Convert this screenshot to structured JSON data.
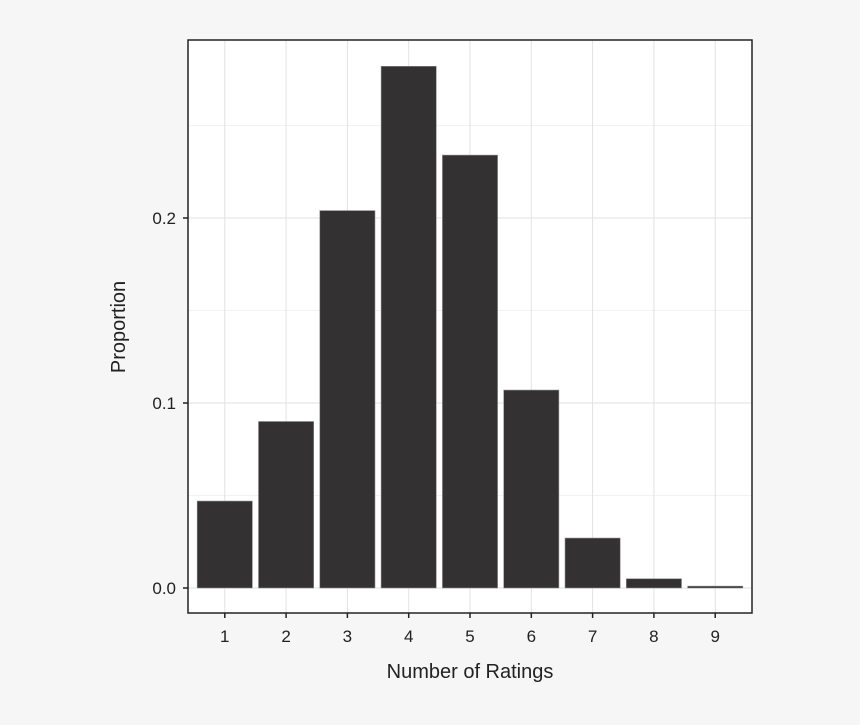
{
  "chart_data": {
    "type": "bar",
    "title": "",
    "xlabel": "Number of Ratings",
    "ylabel": "Proportion",
    "categories": [
      "1",
      "2",
      "3",
      "4",
      "5",
      "6",
      "7",
      "8",
      "9"
    ],
    "values": [
      0.047,
      0.09,
      0.204,
      0.282,
      0.234,
      0.107,
      0.027,
      0.005,
      0.001
    ],
    "yticks": [
      0.0,
      0.1,
      0.2
    ],
    "ytick_labels": [
      "0.0",
      "0.1",
      "0.2"
    ],
    "ylim": [
      -0.014,
      0.297
    ],
    "grid": true,
    "legend": null,
    "colors": {
      "bar": "#333132",
      "bar_edge": "#8a8a8a",
      "panel": "#ffffff",
      "grid_major": "#e2e2e2",
      "grid_minor": "#f2f2f2",
      "background": "#f6f6f6",
      "axis": "#222222"
    }
  }
}
